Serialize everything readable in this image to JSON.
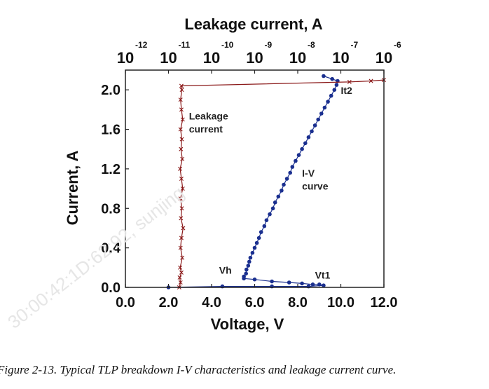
{
  "caption": "Figure 2-13. Typical TLP breakdown I-V characteristics and leakage current curve.",
  "watermark": "30:00:42:1D:62:92, sunjing",
  "chart_data": {
    "type": "scatter",
    "title": "",
    "xlabel": "Voltage, V",
    "ylabel": "Current, A",
    "x2label": "Leakage current, A",
    "xlim": [
      0,
      12
    ],
    "ylim": [
      0,
      2.2
    ],
    "x2lim_log10": [
      -12,
      -6
    ],
    "x_ticks": [
      {
        "value": 0,
        "label": "0.0"
      },
      {
        "value": 2,
        "label": "2.0"
      },
      {
        "value": 4,
        "label": "4.0"
      },
      {
        "value": 6,
        "label": "6.0"
      },
      {
        "value": 8,
        "label": "8.0"
      },
      {
        "value": 10,
        "label": "10.0"
      },
      {
        "value": 12,
        "label": "12.0"
      }
    ],
    "y_ticks": [
      {
        "value": 0,
        "label": "0.0"
      },
      {
        "value": 0.4,
        "label": "0.4"
      },
      {
        "value": 0.8,
        "label": "0.8"
      },
      {
        "value": 1.2,
        "label": "1.2"
      },
      {
        "value": 1.6,
        "label": "1.6"
      },
      {
        "value": 2.0,
        "label": "2.0"
      }
    ],
    "x2_ticks": [
      {
        "exp": -12,
        "base": "10",
        "sup": "-12"
      },
      {
        "exp": -11,
        "base": "10",
        "sup": "-11"
      },
      {
        "exp": -10,
        "base": "10",
        "sup": "-10"
      },
      {
        "exp": -9,
        "base": "10",
        "sup": "-9"
      },
      {
        "exp": -8,
        "base": "10",
        "sup": "-8"
      },
      {
        "exp": -7,
        "base": "10",
        "sup": "-7"
      },
      {
        "exp": -6,
        "base": "10",
        "sup": "-6"
      }
    ],
    "grid": false,
    "series": [
      {
        "role": "iv",
        "color": "#1a2f8f",
        "x_axis": "bottom",
        "marker": "circle",
        "points": [
          [
            2.0,
            0.0
          ],
          [
            4.5,
            0.01
          ],
          [
            6.8,
            0.01
          ],
          [
            8.5,
            0.01
          ],
          [
            9.2,
            0.02
          ],
          [
            9.0,
            0.03
          ],
          [
            8.7,
            0.03
          ],
          [
            8.2,
            0.04
          ],
          [
            7.6,
            0.05
          ],
          [
            6.8,
            0.06
          ],
          [
            6.0,
            0.08
          ],
          [
            5.5,
            0.09
          ],
          [
            5.5,
            0.11
          ],
          [
            5.6,
            0.14
          ],
          [
            5.62,
            0.18
          ],
          [
            5.7,
            0.22
          ],
          [
            5.75,
            0.26
          ],
          [
            5.8,
            0.3
          ],
          [
            5.9,
            0.35
          ],
          [
            6.0,
            0.4
          ],
          [
            6.1,
            0.45
          ],
          [
            6.2,
            0.5
          ],
          [
            6.3,
            0.56
          ],
          [
            6.45,
            0.62
          ],
          [
            6.55,
            0.68
          ],
          [
            6.7,
            0.74
          ],
          [
            6.85,
            0.8
          ],
          [
            6.95,
            0.86
          ],
          [
            7.1,
            0.92
          ],
          [
            7.25,
            0.98
          ],
          [
            7.35,
            1.04
          ],
          [
            7.5,
            1.1
          ],
          [
            7.65,
            1.16
          ],
          [
            7.75,
            1.22
          ],
          [
            7.9,
            1.28
          ],
          [
            8.05,
            1.34
          ],
          [
            8.2,
            1.4
          ],
          [
            8.35,
            1.46
          ],
          [
            8.5,
            1.52
          ],
          [
            8.65,
            1.58
          ],
          [
            8.8,
            1.64
          ],
          [
            8.95,
            1.7
          ],
          [
            9.1,
            1.76
          ],
          [
            9.25,
            1.82
          ],
          [
            9.4,
            1.88
          ],
          [
            9.55,
            1.94
          ],
          [
            9.7,
            2.0
          ],
          [
            9.8,
            2.05
          ],
          [
            9.85,
            2.09
          ],
          [
            9.6,
            2.11
          ],
          [
            9.2,
            2.14
          ]
        ]
      },
      {
        "role": "leakage",
        "color": "#8b1a1a",
        "x_axis": "top",
        "marker": "cross",
        "points": [
          [
            -10.75,
            0.0
          ],
          [
            -10.72,
            0.05
          ],
          [
            -10.74,
            0.1
          ],
          [
            -10.7,
            0.15
          ],
          [
            -10.73,
            0.2
          ],
          [
            -10.68,
            0.3
          ],
          [
            -10.72,
            0.4
          ],
          [
            -10.7,
            0.5
          ],
          [
            -10.66,
            0.6
          ],
          [
            -10.71,
            0.7
          ],
          [
            -10.69,
            0.8
          ],
          [
            -10.72,
            0.9
          ],
          [
            -10.67,
            1.0
          ],
          [
            -10.7,
            1.1
          ],
          [
            -10.73,
            1.2
          ],
          [
            -10.68,
            1.3
          ],
          [
            -10.71,
            1.4
          ],
          [
            -10.69,
            1.5
          ],
          [
            -10.72,
            1.6
          ],
          [
            -10.67,
            1.7
          ],
          [
            -10.7,
            1.8
          ],
          [
            -10.72,
            1.9
          ],
          [
            -10.69,
            2.0
          ],
          [
            -10.7,
            2.04
          ],
          [
            -6.8,
            2.08
          ],
          [
            -6.3,
            2.09
          ],
          [
            -6.0,
            2.1
          ]
        ]
      }
    ],
    "annotations": [
      {
        "text": "Leakage",
        "x": 2.95,
        "y": 1.7
      },
      {
        "text": "current",
        "x": 2.95,
        "y": 1.57
      },
      {
        "text": "I-V",
        "x": 8.2,
        "y": 1.12
      },
      {
        "text": "curve",
        "x": 8.2,
        "y": 0.99
      },
      {
        "text": "Vh",
        "x": 4.35,
        "y": 0.14
      },
      {
        "text": "Vt1",
        "x": 8.8,
        "y": 0.09
      },
      {
        "text": "It2",
        "x": 10.0,
        "y": 1.96
      }
    ]
  }
}
